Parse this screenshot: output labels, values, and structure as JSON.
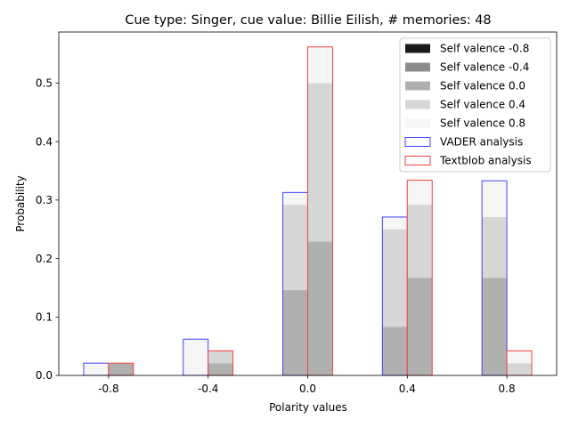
{
  "chart_data": {
    "type": "bar",
    "title": "Cue type: Singer, cue value: Billie Eilish, # memories: 48",
    "xlabel": "Polarity values",
    "ylabel": "Probability",
    "categories": [
      "-0.8",
      "-0.4",
      "0.0",
      "0.4",
      "0.8"
    ],
    "x": [
      -0.8,
      -0.4,
      0.0,
      0.4,
      0.8
    ],
    "ylim": [
      0,
      0.5875
    ],
    "yticks": [
      "0.0",
      "0.1",
      "0.2",
      "0.3",
      "0.4",
      "0.5"
    ],
    "ytick_values": [
      0.0,
      0.1,
      0.2,
      0.3,
      0.4,
      0.5
    ],
    "legend_position": "top-right",
    "stack_series": [
      {
        "name": "Self valence -0.8",
        "color": "#1a1a1a"
      },
      {
        "name": "Self valence -0.4",
        "color": "#8c8c8c"
      },
      {
        "name": "Self valence 0.0",
        "color": "#b0b0b0"
      },
      {
        "name": "Self valence 0.4",
        "color": "#d6d6d6"
      },
      {
        "name": "Self valence 0.8",
        "color": "#f5f5f5"
      }
    ],
    "groups": [
      {
        "name": "VADER analysis",
        "edge_color": "#4040ff",
        "values": [
          [
            0.0,
            0.0,
            0.0,
            0.0,
            0.021
          ],
          [
            0.0,
            0.0,
            0.0,
            0.0,
            0.062
          ],
          [
            0.0,
            0.0,
            0.146,
            0.146,
            0.021
          ],
          [
            0.0,
            0.0,
            0.083,
            0.167,
            0.021
          ],
          [
            0.0,
            0.0,
            0.167,
            0.104,
            0.062
          ]
        ]
      },
      {
        "name": "Textblob analysis",
        "edge_color": "#ff4040",
        "values": [
          [
            0.0,
            0.0,
            0.021,
            0.0,
            0.0
          ],
          [
            0.0,
            0.0,
            0.021,
            0.021,
            0.0
          ],
          [
            0.0,
            0.0,
            0.229,
            0.271,
            0.062
          ],
          [
            0.0,
            0.0,
            0.167,
            0.125,
            0.042
          ],
          [
            0.0,
            0.0,
            0.0,
            0.021,
            0.021
          ]
        ]
      }
    ]
  }
}
